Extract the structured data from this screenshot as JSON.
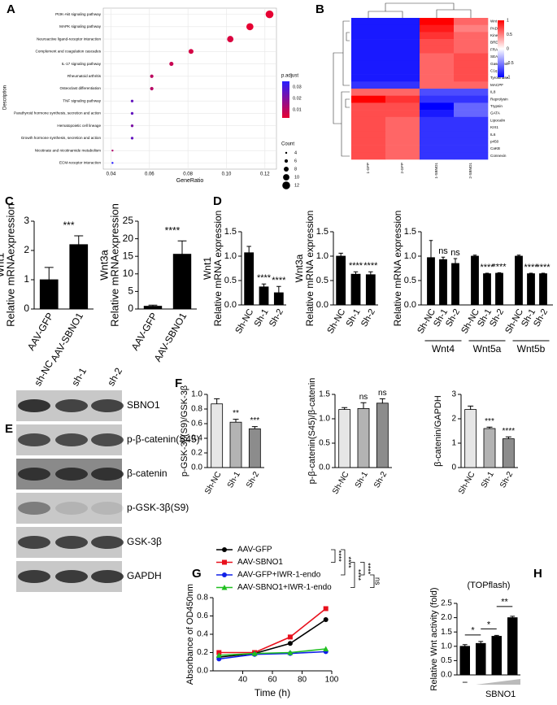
{
  "chart_data": [
    {
      "type": "dot",
      "panel": "A",
      "ylabel": "Description",
      "xlabel": "GeneRatio",
      "categories": [
        "PI3K-Akt signaling pathway",
        "MAPK signaling pathway",
        "Neuroactive ligand-receptor interaction",
        "Complement and coagulation cascades",
        "IL-17 signaling pathway",
        "Rheumatoid arthritis",
        "Osteoclast differentiation",
        "TNF signaling pathway",
        "Parathyroid hormone synthesis, secretion and action",
        "Hematopoietic cell lineage",
        "Growth hormone synthesis, secretion and action",
        "Nicotinate and nicotinamide metabolism",
        "ECM-receptor interaction"
      ],
      "values": [
        0.1224,
        0.1122,
        0.102,
        0.0816,
        0.0714,
        0.0612,
        0.0612,
        0.051,
        0.051,
        0.051,
        0.051,
        0.0408,
        0.0408
      ],
      "count": [
        12,
        11,
        10,
        8,
        7,
        6,
        6,
        5,
        5,
        5,
        5,
        4,
        4
      ],
      "p_adjust": [
        0.003,
        0.003,
        0.005,
        0.006,
        0.008,
        0.01,
        0.011,
        0.025,
        0.025,
        0.021,
        0.025,
        0.012,
        0.035
      ],
      "xlim": [
        0.036,
        0.126
      ],
      "xticks": [
        0.04,
        0.06,
        0.08,
        {
          "value": 0.1,
          "label": "0.10"
        },
        0.12
      ],
      "color_title": "p.adjust",
      "clim": [
        0.003,
        0.035
      ],
      "cticks": [
        0.03,
        0.02,
        0.01
      ],
      "size_title": "Count",
      "size_ticks": [
        4,
        6,
        8,
        10,
        12
      ],
      "grid": true
    },
    {
      "type": "heatmap",
      "panel": "B",
      "rows": [
        "Wnt",
        "PAD",
        "Kinesin",
        "BRD4B",
        "FRAP",
        "SEA",
        "Gasdermin",
        "C1q",
        "Tyrosinase",
        "MACPF",
        "IL8",
        "Reprolysin",
        "Trypsin",
        "GATA",
        "Lipocalin",
        "KIX1",
        "IL6",
        "p450",
        "CaKB",
        "Connexin"
      ],
      "columns": [
        "1-GFP",
        "2-GFP",
        "1-SBNO1",
        "2-SBNO1"
      ],
      "values": [
        [
          -0.9,
          -0.9,
          1.0,
          0.6
        ],
        [
          -0.9,
          -0.9,
          0.9,
          0.5
        ],
        [
          -0.9,
          -0.9,
          0.8,
          0.6
        ],
        [
          -0.9,
          -0.9,
          0.7,
          0.6
        ],
        [
          -0.9,
          -0.9,
          0.7,
          0.6
        ],
        [
          -0.9,
          -0.9,
          0.6,
          0.7
        ],
        [
          -0.9,
          -0.9,
          0.6,
          0.7
        ],
        [
          -0.9,
          -0.9,
          0.6,
          0.7
        ],
        [
          -0.9,
          -0.9,
          0.6,
          0.7
        ],
        [
          -0.8,
          -0.8,
          0.6,
          0.6
        ],
        [
          0.6,
          0.6,
          -0.7,
          -0.7
        ],
        [
          1.0,
          0.8,
          -0.8,
          -0.8
        ],
        [
          0.7,
          0.7,
          -1.0,
          -0.6
        ],
        [
          0.7,
          0.7,
          -0.9,
          -0.6
        ],
        [
          0.7,
          0.6,
          -0.8,
          -0.8
        ],
        [
          0.7,
          0.6,
          -0.8,
          -0.8
        ],
        [
          0.7,
          0.6,
          -0.8,
          -0.8
        ],
        [
          0.7,
          0.6,
          -0.8,
          -0.8
        ],
        [
          0.7,
          0.6,
          -0.8,
          -0.8
        ],
        [
          0.7,
          0.6,
          -0.8,
          -0.8
        ]
      ],
      "clim": [
        -1,
        1
      ],
      "cticks": [
        1,
        0.5,
        0,
        -0.5,
        -1
      ]
    },
    {
      "type": "bar",
      "panel": "C",
      "ylabel_top": "Wnt1",
      "ylabel": "Relative mRNAexpression",
      "categories": [
        "AAV-GFP",
        "AAV-SBNO1"
      ],
      "values": [
        1.0,
        2.2
      ],
      "errors": [
        0.42,
        0.3
      ],
      "annotation": "***",
      "color": "#000000",
      "ylim": [
        0,
        3
      ],
      "yticks": [
        0,
        1,
        2,
        3
      ]
    },
    {
      "type": "bar",
      "ylabel_top": "Wnt3a",
      "ylabel": "Relative mRNAexpression",
      "categories": [
        "AAV-GFP",
        "AAV-SBNO1"
      ],
      "values": [
        0.8,
        15.6
      ],
      "errors": [
        0.3,
        3.8
      ],
      "annotation": "****",
      "color": "#000000",
      "ylim": [
        0,
        25
      ],
      "yticks": [
        0,
        5,
        10,
        15,
        20,
        25
      ]
    },
    {
      "type": "bar",
      "panel": "D",
      "ylabel_top": "Wnt1",
      "ylabel": "Relative mRNA expression",
      "categories": [
        "Sh-NC",
        "Sh-1",
        "Sh-2"
      ],
      "values": [
        1.07,
        0.37,
        0.25
      ],
      "errors": [
        0.13,
        0.06,
        0.13
      ],
      "annotations": [
        null,
        "****",
        "****"
      ],
      "color": "#000000",
      "ylim": [
        0,
        1.5
      ],
      "yticks": [
        {
          "value": 0,
          "label": "0.0"
        },
        0.5,
        {
          "value": 1,
          "label": "1.0"
        },
        1.5
      ]
    },
    {
      "type": "bar",
      "ylabel_top": "Wnt3a",
      "ylabel": "Relative mRNA expression",
      "categories": [
        "Sh-NC",
        "Sh-1",
        "Sh-2"
      ],
      "values": [
        1.0,
        0.63,
        0.62
      ],
      "errors": [
        0.06,
        0.05,
        0.06
      ],
      "annotations": [
        null,
        "****",
        "****"
      ],
      "color": "#000000",
      "ylim": [
        0,
        1.5
      ],
      "yticks": [
        {
          "value": 0,
          "label": "0.0"
        },
        0.5,
        {
          "value": 1,
          "label": "1.0"
        },
        1.5
      ]
    },
    {
      "type": "grouped_bar",
      "ylabel": "Relative mRNA expression",
      "categories": [
        "Sh-NC",
        "Sh-1",
        "Sh-2"
      ],
      "groups": [
        {
          "name": "Wnt4",
          "values": [
            0.97,
            0.93,
            0.85
          ],
          "errors": [
            0.35,
            0.05,
            0.1
          ],
          "annotations": [
            null,
            "ns",
            "ns"
          ]
        },
        {
          "name": "Wnt5a",
          "values": [
            1.0,
            0.64,
            0.65
          ],
          "errors": [
            0.02,
            0.01,
            0.01
          ],
          "annotations": [
            null,
            "****",
            "****"
          ]
        },
        {
          "name": "Wnt5b",
          "values": [
            1.0,
            0.64,
            0.64
          ],
          "errors": [
            0.02,
            0.01,
            0.01
          ],
          "annotations": [
            null,
            "****",
            "****"
          ]
        }
      ],
      "color": "#000000",
      "ylim": [
        0,
        1.5
      ],
      "yticks": [
        {
          "value": 0,
          "label": "0.0"
        },
        0.5,
        {
          "value": 1,
          "label": "1.0"
        },
        1.5
      ]
    },
    {
      "type": "bar",
      "panel": "F",
      "ylabel": "p-GSK-3β(S9)/GSK-3β",
      "categories": [
        "Sh-NC",
        "Sh-1",
        "Sh-2"
      ],
      "values": [
        0.87,
        0.62,
        0.53
      ],
      "errors": [
        0.07,
        0.04,
        0.03
      ],
      "annotations": [
        null,
        "**",
        "***"
      ],
      "colors": [
        "#e6e6e6",
        "#b3b3b3",
        "#8c8c8c"
      ],
      "ylim": [
        0,
        1
      ],
      "yticks": [
        {
          "value": 0,
          "label": "0.0"
        },
        0.2,
        0.4,
        0.6,
        0.8,
        {
          "value": 1,
          "label": "1.0"
        }
      ]
    },
    {
      "type": "bar",
      "ylabel": "p-β-catenin(S45)/β-catenin",
      "categories": [
        "Sh-NC",
        "Sh-1",
        "Sh-2"
      ],
      "values": [
        1.19,
        1.21,
        1.32
      ],
      "errors": [
        0.04,
        0.12,
        0.09
      ],
      "annotations": [
        null,
        "ns",
        "ns"
      ],
      "colors": [
        "#e6e6e6",
        "#b3b3b3",
        "#8c8c8c"
      ],
      "ylim": [
        0,
        1.5
      ],
      "yticks": [
        {
          "value": 0,
          "label": "0.0"
        },
        0.5,
        {
          "value": 1,
          "label": "1.0"
        },
        1.5
      ]
    },
    {
      "type": "bar",
      "ylabel": "β-catenin/GAPDH",
      "categories": [
        "Sh-NC",
        "Sh-1",
        "Sh-2"
      ],
      "values": [
        2.38,
        1.6,
        1.18
      ],
      "errors": [
        0.14,
        0.06,
        0.08
      ],
      "annotations": [
        null,
        "***",
        "****"
      ],
      "colors": [
        "#e6e6e6",
        "#b3b3b3",
        "#8c8c8c"
      ],
      "ylim": [
        0,
        3
      ],
      "yticks": [
        0,
        1,
        2,
        3
      ]
    },
    {
      "type": "line",
      "panel": "G",
      "xlabel": "Time (h)",
      "ylabel": "Absorbance of OD450nm",
      "x": [
        24,
        48,
        72,
        96
      ],
      "series": [
        {
          "name": "AAV-GFP",
          "color": "#000000",
          "marker": "circle",
          "values": [
            0.15,
            0.19,
            0.3,
            0.56
          ]
        },
        {
          "name": "AAV-SBNO1",
          "color": "#e8101c",
          "marker": "square",
          "values": [
            0.2,
            0.2,
            0.37,
            0.68
          ]
        },
        {
          "name": "AAV-GFP+IWR-1-endo",
          "color": "#1020e8",
          "marker": "circle",
          "values": [
            0.13,
            0.18,
            0.19,
            0.21
          ]
        },
        {
          "name": "AAV-SBNO1+IWR-1-endo",
          "color": "#20c020",
          "marker": "triangle",
          "values": [
            0.17,
            0.19,
            0.2,
            0.24
          ]
        }
      ],
      "comparisons": [
        "****",
        "****",
        "****",
        "****",
        "ns"
      ],
      "xlim": [
        20,
        100
      ],
      "xticks": [
        40,
        60,
        80,
        100
      ],
      "ylim": [
        0,
        0.8
      ],
      "yticks": [
        {
          "value": 0,
          "label": "0.0"
        },
        0.2,
        0.4,
        0.6,
        0.8
      ]
    },
    {
      "type": "bar",
      "panel": "H",
      "title": "(TOPflash)",
      "ylabel": "Relative Wnt activity (fold)",
      "xlabel": "SBNO1",
      "categories": [
        "−",
        null,
        null,
        null
      ],
      "values": [
        1.0,
        1.1,
        1.35,
        2.0
      ],
      "errors": [
        0.06,
        0.07,
        0.03,
        0.05
      ],
      "comparisons": [
        "*",
        "*",
        "**"
      ],
      "color": "#000000",
      "ylim": [
        0,
        2.5
      ],
      "yticks": [
        {
          "value": 0,
          "label": "0.0"
        },
        0.5,
        {
          "value": 1,
          "label": "1.0"
        },
        1.5,
        {
          "value": 2,
          "label": "2.0"
        },
        2.5
      ]
    }
  ],
  "blot": {
    "panel": "E",
    "lanes": [
      "sh-NC",
      "sh-1",
      "sh-2"
    ],
    "rows": [
      "SBNO1",
      "p-β-catenin(S45)",
      "β-catenin",
      "p-GSK-3β(S9)",
      "GSK-3β",
      "GAPDH"
    ]
  }
}
